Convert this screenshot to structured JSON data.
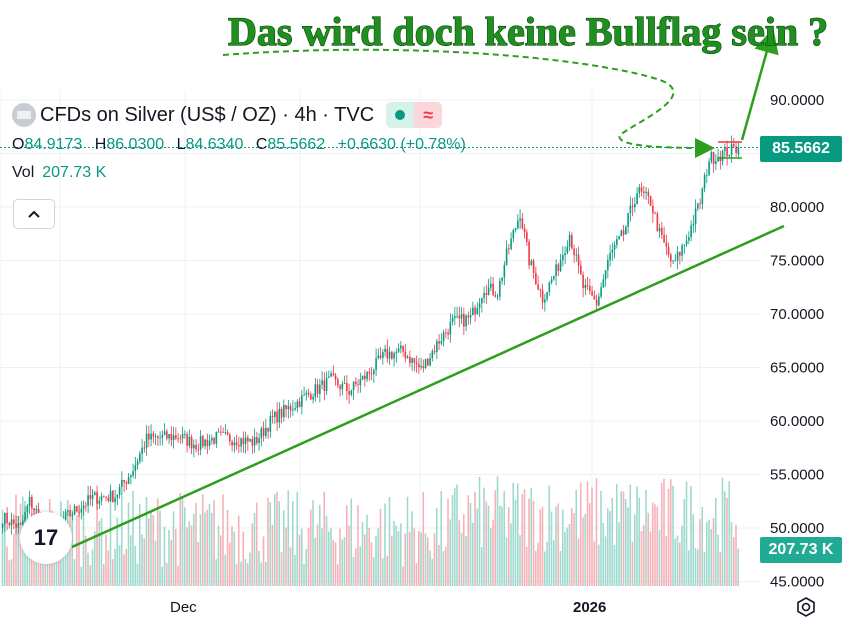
{
  "annotation": {
    "text": "Das wird doch keine Bullflag sein ?"
  },
  "header": {
    "title": "CFDs on Silver (US$ / OZ) · 4h · TVC",
    "ohlc": [
      {
        "k": "O",
        "v": "84.9173"
      },
      {
        "k": "H",
        "v": "86.0300"
      },
      {
        "k": "L",
        "v": "84.6340"
      },
      {
        "k": "C",
        "v": "85.5662"
      }
    ],
    "change": "+0.6630 (+0.78%)",
    "vol_label": "Vol",
    "vol_value": "207.73 K",
    "badge_symbol": "≈"
  },
  "price_axis": {
    "ticks": [
      "90.0000",
      "85.0000",
      "80.0000",
      "75.0000",
      "70.0000",
      "65.0000",
      "60.0000",
      "55.0000",
      "50.0000",
      "45.0000"
    ],
    "current_price_label": "85.5662",
    "current_volume_label": "207.73 K"
  },
  "time_axis": {
    "labels": [
      "Dec",
      "2026"
    ]
  },
  "logo_text": "17",
  "colors": {
    "up": "#089981",
    "down": "#f23645",
    "trend": "#2e9e1e",
    "annotation": "#1f8f1f"
  },
  "chart_data": {
    "type": "candlestick",
    "symbol": "CFDs on Silver (US$ / OZ)",
    "interval": "4h",
    "ylim": [
      45,
      93
    ],
    "x_labels": [
      "Dec",
      "2026"
    ],
    "ohlc_last": {
      "open": 84.9173,
      "high": 86.03,
      "low": 84.634,
      "close": 85.5662
    },
    "close_anchors": [
      [
        0,
        51.0
      ],
      [
        8,
        50.0
      ],
      [
        12,
        52.5
      ],
      [
        18,
        50.5
      ],
      [
        22,
        49.2
      ],
      [
        28,
        51.0
      ],
      [
        40,
        52.8
      ],
      [
        50,
        53.0
      ],
      [
        58,
        55.5
      ],
      [
        64,
        58.3
      ],
      [
        78,
        58.6
      ],
      [
        86,
        57.8
      ],
      [
        96,
        58.5
      ],
      [
        104,
        58.3
      ],
      [
        112,
        58.0
      ],
      [
        120,
        60.2
      ],
      [
        128,
        61.3
      ],
      [
        136,
        62.5
      ],
      [
        146,
        63.8
      ],
      [
        154,
        62.8
      ],
      [
        162,
        64.3
      ],
      [
        170,
        66.2
      ],
      [
        178,
        66.5
      ],
      [
        186,
        64.8
      ],
      [
        194,
        67.5
      ],
      [
        200,
        69.2
      ],
      [
        208,
        69.6
      ],
      [
        214,
        72.5
      ],
      [
        220,
        72.0
      ],
      [
        224,
        75.5
      ],
      [
        230,
        79.5
      ],
      [
        234,
        75.0
      ],
      [
        240,
        71.5
      ],
      [
        246,
        74.0
      ],
      [
        252,
        77.5
      ],
      [
        258,
        72.5
      ],
      [
        264,
        71.0
      ],
      [
        270,
        75.5
      ],
      [
        276,
        77.5
      ],
      [
        282,
        81.5
      ],
      [
        288,
        80.5
      ],
      [
        292,
        77.5
      ],
      [
        298,
        74.5
      ],
      [
        304,
        77.0
      ],
      [
        310,
        80.5
      ],
      [
        314,
        84.5
      ],
      [
        320,
        85.0
      ],
      [
        327,
        85.5662
      ]
    ],
    "volume_k": {
      "max": 260,
      "last": 207.73
    },
    "annotations": [
      {
        "type": "trendline",
        "from": [
          "Nov",
          48.2
        ],
        "to": [
          "Feb",
          78.2
        ]
      },
      {
        "type": "flag",
        "price_high": 85.6,
        "price_low": 84.5
      }
    ]
  }
}
